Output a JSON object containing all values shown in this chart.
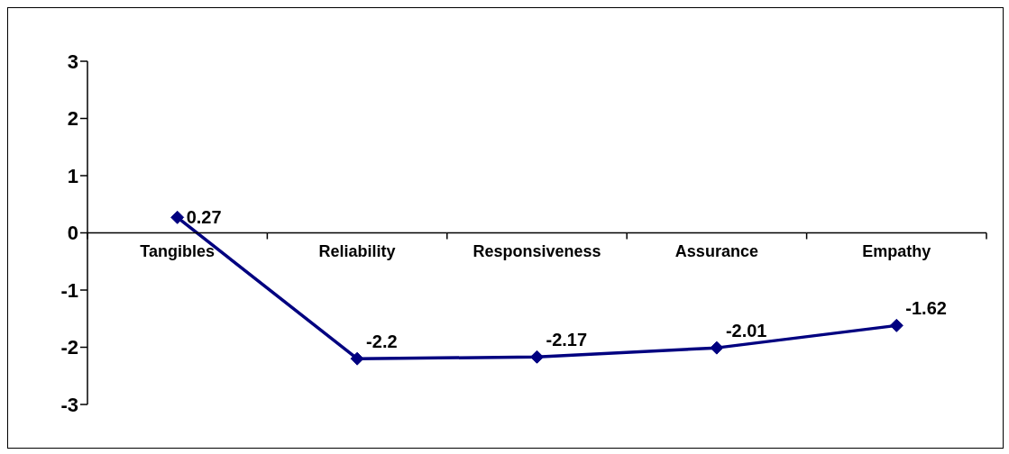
{
  "chart_data": {
    "type": "line",
    "categories": [
      "Tangibles",
      "Reliability",
      "Responsiveness",
      "Assurance",
      "Empathy"
    ],
    "series": [
      {
        "color": "#000080",
        "values": [
          0.27,
          -2.2,
          -2.17,
          -2.01,
          -1.62
        ]
      }
    ],
    "ylim": [
      -3,
      3
    ],
    "yticks": [
      -3,
      -2,
      -1,
      0,
      1,
      2,
      3
    ],
    "marker": "diamond",
    "line_style": "solid",
    "data_labels": true
  }
}
